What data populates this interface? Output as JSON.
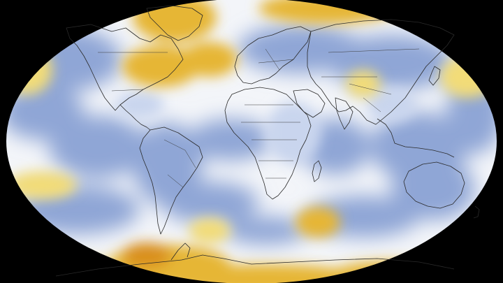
{
  "map": {
    "kind": "global surface temperature anomaly",
    "projection": "Robinson",
    "background_color": "#000000",
    "outline_color": "#222222",
    "colors": {
      "cool": "#8fa6d6",
      "cool_light": "#c9d5ee",
      "neutral": "#f3f5f9",
      "warm_light": "#f2dc78",
      "warm": "#e6b636",
      "hot": "#d98f1c"
    }
  }
}
